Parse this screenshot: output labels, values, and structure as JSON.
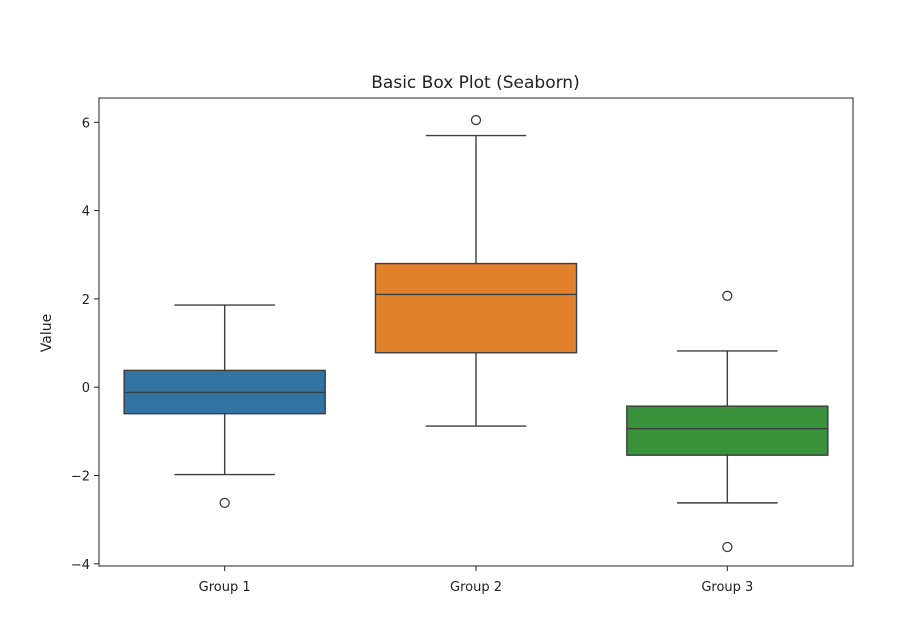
{
  "chart_data": {
    "type": "box",
    "title": "Basic Box Plot (Seaborn)",
    "xlabel": "",
    "ylabel": "Value",
    "ylim": [
      -4.05,
      6.55
    ],
    "yticks": [
      -4,
      -2,
      0,
      2,
      4,
      6
    ],
    "ytick_labels": [
      "−4",
      "−2",
      "0",
      "2",
      "4",
      "6"
    ],
    "grid": false,
    "legend": "none",
    "categories": [
      "Group 1",
      "Group 2",
      "Group 3"
    ],
    "boxes": [
      {
        "category": "Group 1",
        "color": "#3274a1",
        "whisker_low": -1.98,
        "q1": -0.6,
        "median": -0.12,
        "q3": 0.38,
        "whisker_high": 1.86,
        "outliers": [
          -2.62
        ]
      },
      {
        "category": "Group 2",
        "color": "#e1812c",
        "whisker_low": -0.88,
        "q1": 0.78,
        "median": 2.1,
        "q3": 2.8,
        "whisker_high": 5.7,
        "outliers": [
          6.05
        ]
      },
      {
        "category": "Group 3",
        "color": "#3a923a",
        "whisker_low": -2.62,
        "q1": -1.54,
        "median": -0.94,
        "q3": -0.43,
        "whisker_high": 0.82,
        "outliers": [
          2.07,
          -3.62
        ]
      }
    ]
  }
}
